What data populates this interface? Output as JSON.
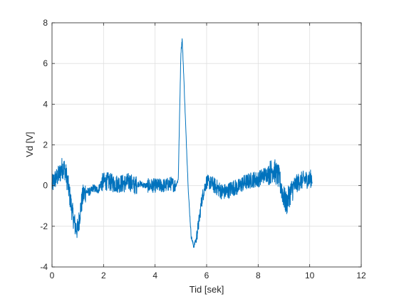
{
  "chart_data": {
    "type": "line",
    "title": "",
    "xlabel": "Tid [sek]",
    "ylabel": "Vd [V]",
    "xlim": [
      0,
      12
    ],
    "ylim": [
      -4,
      8
    ],
    "xticks": [
      "0",
      "2",
      "4",
      "6",
      "8",
      "10",
      "12"
    ],
    "yticks": [
      "-4",
      "-2",
      "0",
      "2",
      "4",
      "6",
      "8"
    ],
    "grid": true,
    "legend": "none",
    "series": [
      {
        "color": "#0072bd",
        "x": [
          0.0,
          0.1,
          0.2,
          0.3,
          0.4,
          0.5,
          0.6,
          0.7,
          0.8,
          0.9,
          1.0,
          1.1,
          1.2,
          1.3,
          1.4,
          1.5,
          1.6,
          1.7,
          1.8,
          1.9,
          2.0,
          2.2,
          2.4,
          2.6,
          2.8,
          3.0,
          3.2,
          3.4,
          3.6,
          3.8,
          4.0,
          4.2,
          4.4,
          4.6,
          4.8,
          4.9,
          5.0,
          5.05,
          5.1,
          5.2,
          5.3,
          5.4,
          5.5,
          5.6,
          5.7,
          5.8,
          5.9,
          6.0,
          6.2,
          6.4,
          6.6,
          6.8,
          7.0,
          7.2,
          7.4,
          7.6,
          7.8,
          8.0,
          8.2,
          8.4,
          8.6,
          8.8,
          9.0,
          9.1,
          9.2,
          9.4,
          9.6,
          9.8,
          10.0,
          10.1
        ],
        "y": [
          0.0,
          0.3,
          0.4,
          0.6,
          0.9,
          0.8,
          0.2,
          -0.6,
          -1.4,
          -2.0,
          -2.2,
          -1.2,
          -0.5,
          -0.3,
          -0.3,
          -0.3,
          -0.1,
          -0.2,
          -0.2,
          0.1,
          0.2,
          0.2,
          0.1,
          0.1,
          0.1,
          0.2,
          0.0,
          0.1,
          0.0,
          0.0,
          0.0,
          0.0,
          0.0,
          0.1,
          0.0,
          0.3,
          6.5,
          7.2,
          5.8,
          2.5,
          -0.5,
          -2.5,
          -3.0,
          -2.6,
          -1.8,
          -0.8,
          -0.2,
          0.2,
          0.1,
          -0.1,
          -0.3,
          -0.3,
          -0.1,
          -0.1,
          0.1,
          0.2,
          0.3,
          0.3,
          0.5,
          0.6,
          0.8,
          0.4,
          -0.6,
          -0.9,
          -0.5,
          0.0,
          0.2,
          0.3,
          0.3,
          0.4
        ]
      }
    ]
  }
}
